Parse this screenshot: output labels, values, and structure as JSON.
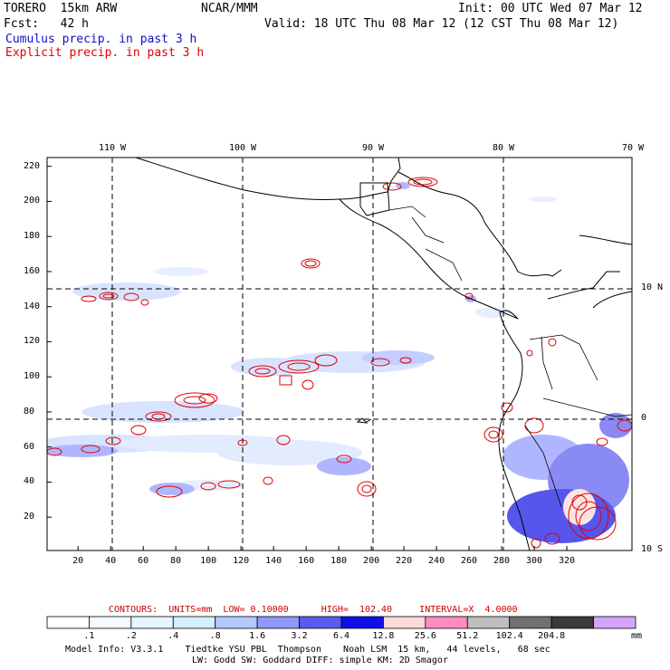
{
  "header": {
    "model": "TORERO  15km ARW",
    "center": "NCAR/MMM",
    "init": "Init: 00 UTC Wed 07 Mar 12",
    "fcst": "Fcst:   42 h",
    "valid": "Valid: 18 UTC Thu 08 Mar 12 (12 CST Thu 08 Mar 12)",
    "field1": "Cumulus precip. in past 3 h",
    "field2": "Explicit precip. in past 3 h"
  },
  "map": {
    "lon_labels": [
      "110 W",
      "100 W",
      "90 W",
      "80 W",
      "70 W"
    ],
    "lat_labels": [
      "10 N",
      "0",
      "10 S"
    ],
    "x_ticks": [
      "20",
      "40",
      "60",
      "80",
      "100",
      "120",
      "140",
      "160",
      "180",
      "200",
      "220",
      "240",
      "260",
      "280",
      "300",
      "320"
    ],
    "y_ticks": [
      "20",
      "40",
      "60",
      "80",
      "100",
      "120",
      "140",
      "160",
      "180",
      "200",
      "220"
    ]
  },
  "contours": {
    "label": "CONTOURS:  UNITS=mm  LOW= 0.10000      HIGH=  102.40     INTERVAL=X  4.0000"
  },
  "colorbar": {
    "colors": [
      "#ffffff",
      "#f4f8ff",
      "#e6f6ff",
      "#d6ecff",
      "#b4c8ff",
      "#8e98ff",
      "#5a5af0",
      "#1010e6",
      "#ffd8d8",
      "#ff8cc0",
      "#bebebe",
      "#707070",
      "#3a3a3a",
      "#d4a4ff"
    ],
    "labels": [
      ".1",
      ".2",
      ".4",
      ".8",
      "1.6",
      "3.2",
      "6.4",
      "12.8",
      "25.6",
      "51.2",
      "102.4",
      "204.8"
    ],
    "unit": "mm"
  },
  "model_info": {
    "line1": "Model Info: V3.3.1    Tiedtke YSU PBL  Thompson    Noah LSM  15 km,   44 levels,   68 sec",
    "line2": "LW: Godd SW: Goddard DIFF: simple KM: 2D Smagor"
  }
}
